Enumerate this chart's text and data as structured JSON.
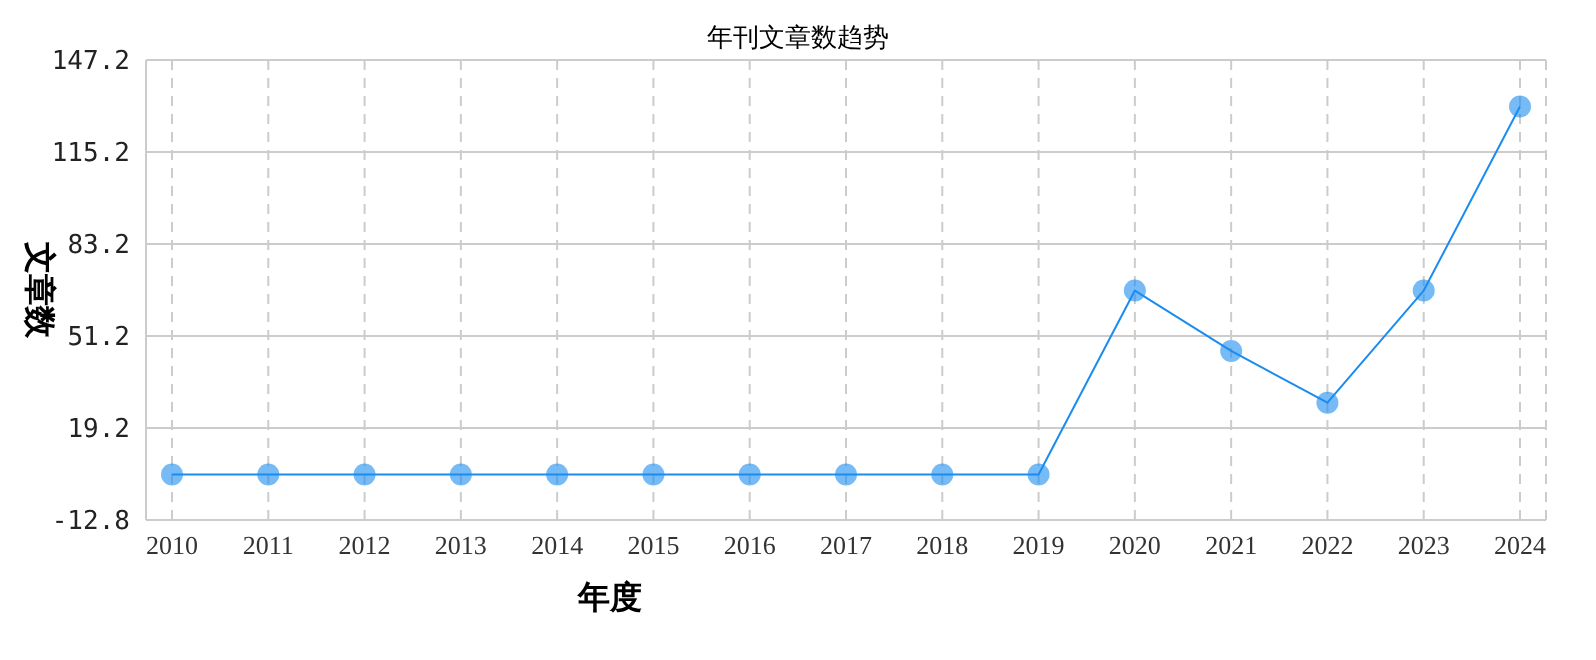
{
  "chart_data": {
    "type": "line",
    "title": "年刊文章数趋势",
    "xlabel": "年度",
    "ylabel": "文章数",
    "categories": [
      "2010",
      "2011",
      "2012",
      "2013",
      "2014",
      "2015",
      "2016",
      "2017",
      "2018",
      "2019",
      "2020",
      "2021",
      "2022",
      "2023",
      "2024"
    ],
    "series": [
      {
        "color": "#1a8cf0",
        "values": [
          3,
          3,
          3,
          3,
          3,
          3,
          3,
          3,
          3,
          3,
          67,
          46,
          28,
          67,
          131
        ]
      }
    ],
    "ylim": [
      -12.8,
      147.2
    ],
    "yticks": [
      -12.8,
      19.2,
      51.2,
      83.2,
      115.2,
      147.2
    ],
    "grid": true,
    "marker": "circle",
    "line_style": "solid"
  }
}
